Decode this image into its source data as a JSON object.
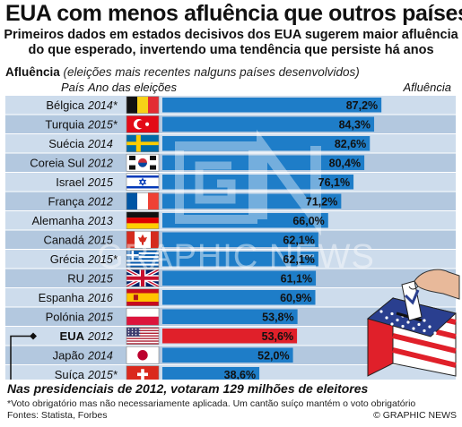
{
  "title": "EUA com menos afluência que outros países",
  "subtitle_line1": "Primeiros dados em estados decisivos dos EUA sugerem maior afluência",
  "subtitle_line2": "do que esperado, invertendo uma tendência que persiste há anos",
  "section_heading": "Afluência",
  "section_note": "(eleições mais recentes nalguns países desenvolvidos)",
  "footer_note": "Nas presidenciais de 2012, votaram 129 milhões de eleitores",
  "footnote": "*Voto obrigatório mas não necessariamente aplicada. Um cantão suíço mantém o voto obrigatório",
  "sources": "Fontes: Statista, Forbes",
  "credit": "© GRAPHIC NEWS",
  "watermark": "GRAPHIC NEWS",
  "colors": {
    "bar": "#1e7dc8",
    "highlight_bar": "#e0202a",
    "row_light": "#cddcec",
    "row_dark": "#b3c8df"
  },
  "chart_data": {
    "type": "bar",
    "orientation": "horizontal",
    "column_headers": {
      "country": "País",
      "year": "Ano das eleições",
      "value": "Afluência"
    },
    "xlim": [
      0,
      100
    ],
    "highlight": "EUA",
    "rows": [
      {
        "country": "Bélgica",
        "year": "2014*",
        "value": 87.2,
        "label": "87,2%",
        "flag": "belgium-flag"
      },
      {
        "country": "Turquia",
        "year": "2015*",
        "value": 84.3,
        "label": "84,3%",
        "flag": "turkey-flag"
      },
      {
        "country": "Suécia",
        "year": "2014",
        "value": 82.6,
        "label": "82,6%",
        "flag": "sweden-flag"
      },
      {
        "country": "Coreia Sul",
        "year": "2012",
        "value": 80.4,
        "label": "80,4%",
        "flag": "south-korea-flag"
      },
      {
        "country": "Israel",
        "year": "2015",
        "value": 76.1,
        "label": "76,1%",
        "flag": "israel-flag"
      },
      {
        "country": "França",
        "year": "2012",
        "value": 71.2,
        "label": "71,2%",
        "flag": "france-flag"
      },
      {
        "country": "Alemanha",
        "year": "2013",
        "value": 66.0,
        "label": "66,0%",
        "flag": "germany-flag"
      },
      {
        "country": "Canadá",
        "year": "2015",
        "value": 62.1,
        "label": "62,1%",
        "flag": "canada-flag"
      },
      {
        "country": "Grécia",
        "year": "2015*",
        "value": 62.1,
        "label": "62,1%",
        "flag": "greece-flag"
      },
      {
        "country": "RU",
        "year": "2015",
        "value": 61.1,
        "label": "61,1%",
        "flag": "uk-flag"
      },
      {
        "country": "Espanha",
        "year": "2016",
        "value": 60.9,
        "label": "60,9%",
        "flag": "spain-flag"
      },
      {
        "country": "Polónia",
        "year": "2015",
        "value": 53.8,
        "label": "53,8%",
        "flag": "poland-flag"
      },
      {
        "country": "EUA",
        "year": "2012",
        "value": 53.6,
        "label": "53,6%",
        "flag": "usa-flag"
      },
      {
        "country": "Japão",
        "year": "2014",
        "value": 52.0,
        "label": "52,0%",
        "flag": "japan-flag"
      },
      {
        "country": "Suíça",
        "year": "2015*",
        "value": 38.6,
        "label": "38,6%",
        "flag": "switzerland-flag"
      }
    ]
  }
}
